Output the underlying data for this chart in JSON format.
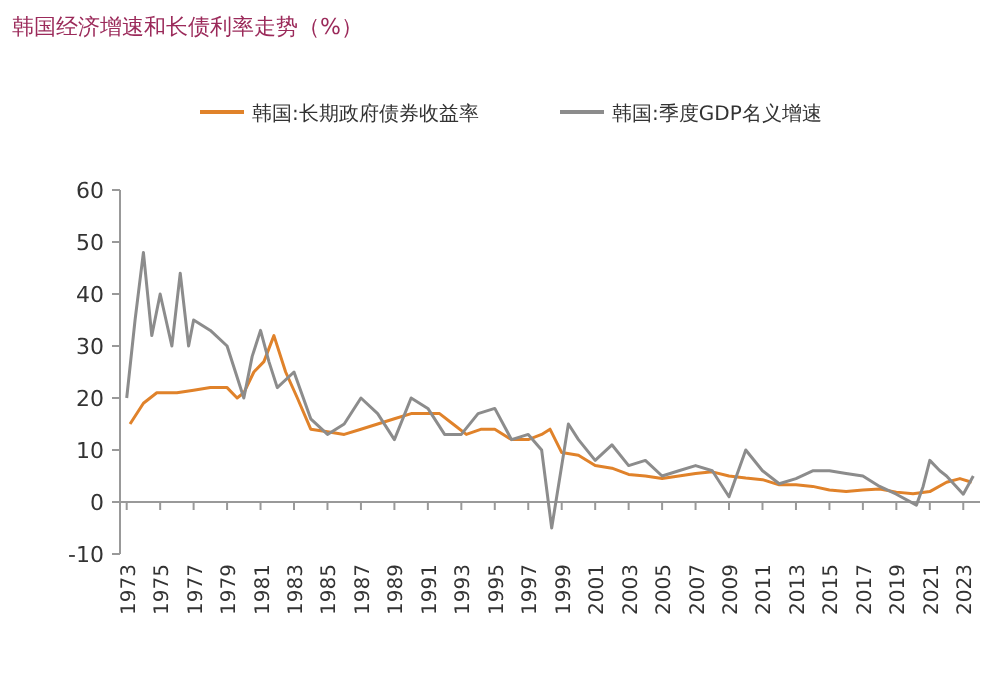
{
  "chart_data": {
    "type": "line",
    "title": "韩国经济增速和长债利率走势（%）",
    "xlim": [
      1972.6,
      2024
    ],
    "xticks": [
      1973,
      1975,
      1977,
      1979,
      1981,
      1983,
      1985,
      1987,
      1989,
      1991,
      1993,
      1995,
      1997,
      1999,
      2001,
      2003,
      2005,
      2007,
      2009,
      2011,
      2013,
      2015,
      2017,
      2019,
      2021,
      2023
    ],
    "ylim": [
      -10,
      60
    ],
    "yticks": [
      -10,
      0,
      10,
      20,
      30,
      40,
      50,
      60
    ],
    "legend": "top",
    "marker": "none",
    "line_style": "solid",
    "series": [
      {
        "name": "韩国:长期政府债券收益率",
        "color": "#e0822a",
        "x": [
          1973.2,
          1974,
          1974.8,
          1976,
          1977,
          1978,
          1979,
          1979.6,
          1980,
          1980.6,
          1981.2,
          1981.8,
          1982.5,
          1983.2,
          1984,
          1985,
          1986,
          1987,
          1988,
          1989,
          1990,
          1991,
          1991.7,
          1992.5,
          1993.3,
          1994.2,
          1995,
          1996,
          1997,
          1997.8,
          1998.3,
          1999,
          2000,
          2001,
          2002,
          2003,
          2004,
          2005,
          2006,
          2007,
          2008,
          2009,
          2010,
          2011,
          2012,
          2013,
          2014,
          2015,
          2016,
          2017,
          2018,
          2019,
          2020,
          2021,
          2022,
          2022.8,
          2023.5
        ],
        "values": [
          15,
          19,
          21,
          21,
          21.5,
          22,
          22,
          20,
          21,
          25,
          27,
          32,
          25,
          20,
          14,
          13.5,
          13,
          14,
          15,
          16,
          17,
          17,
          17,
          15,
          13,
          14,
          14,
          12,
          12,
          13,
          14,
          9.5,
          9,
          7,
          6.5,
          5.3,
          5,
          4.5,
          5,
          5.5,
          5.8,
          5,
          4.6,
          4.3,
          3.3,
          3.3,
          3.0,
          2.3,
          2.0,
          2.3,
          2.5,
          1.9,
          1.6,
          2.0,
          3.8,
          4.5,
          3.8
        ]
      },
      {
        "name": "韩国:季度GDP名义增速",
        "color": "#8c8c8c",
        "x": [
          1973,
          1973.5,
          1974,
          1974.5,
          1975,
          1975.7,
          1976.2,
          1976.7,
          1977,
          1978,
          1979,
          1980,
          1980.5,
          1981,
          1981.5,
          1982,
          1983,
          1984,
          1985,
          1986,
          1987,
          1988,
          1989,
          1990,
          1991,
          1992,
          1993,
          1994,
          1995,
          1996,
          1997,
          1997.8,
          1998.4,
          1998.9,
          1999.4,
          2000,
          2001,
          2002,
          2003,
          2004,
          2005,
          2006,
          2007,
          2008,
          2009,
          2010,
          2011,
          2012,
          2013,
          2014,
          2015,
          2016,
          2017,
          2018,
          2019,
          2020.2,
          2020.6,
          2021,
          2021.6,
          2022,
          2023,
          2023.6
        ],
        "values": [
          20,
          35,
          48,
          32,
          40,
          30,
          44,
          30,
          35,
          33,
          30,
          20,
          28,
          33,
          27,
          22,
          25,
          16,
          13,
          15,
          20,
          17,
          12,
          20,
          18,
          13,
          13,
          17,
          18,
          12,
          13,
          10,
          -5,
          5,
          15,
          12,
          8,
          11,
          7,
          8,
          5,
          6,
          7,
          6,
          1,
          10,
          6,
          3.5,
          4.5,
          6,
          6,
          5.5,
          5,
          3,
          1.5,
          -0.6,
          3,
          8,
          6,
          5,
          1.5,
          5
        ]
      }
    ]
  }
}
